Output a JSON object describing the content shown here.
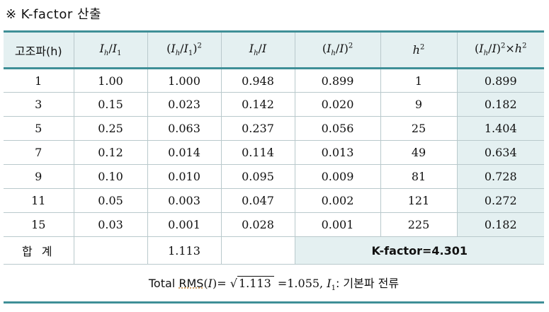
{
  "title": {
    "mark": "※",
    "text": "K-factor 산출"
  },
  "header": {
    "col0": "고조파(h)",
    "col1": "Ih/I1",
    "col2": "(Ih/I1)2",
    "col3": "Ih/I",
    "col4": "(Ih/I)2",
    "col5": "h2",
    "col6": "(Ih/I)2×h2"
  },
  "rows": [
    [
      "1",
      "1.00",
      "1.000",
      "0.948",
      "0.899",
      "1",
      "0.899"
    ],
    [
      "3",
      "0.15",
      "0.023",
      "0.142",
      "0.020",
      "9",
      "0.182"
    ],
    [
      "5",
      "0.25",
      "0.063",
      "0.237",
      "0.056",
      "25",
      "1.404"
    ],
    [
      "7",
      "0.12",
      "0.014",
      "0.114",
      "0.013",
      "49",
      "0.634"
    ],
    [
      "9",
      "0.10",
      "0.010",
      "0.095",
      "0.009",
      "81",
      "0.728"
    ],
    [
      "11",
      "0.05",
      "0.003",
      "0.047",
      "0.002",
      "121",
      "0.272"
    ],
    [
      "15",
      "0.03",
      "0.001",
      "0.028",
      "0.001",
      "225",
      "0.182"
    ]
  ],
  "summary": {
    "label": "합 계",
    "sum": "1.113",
    "kfactor": "K-factor=4.301"
  },
  "footer": {
    "total_label": "Total",
    "rms": "RMS",
    "sqrt_value": "1.113",
    "result": "=1.055,",
    "note": ": 기본파 전류"
  }
}
